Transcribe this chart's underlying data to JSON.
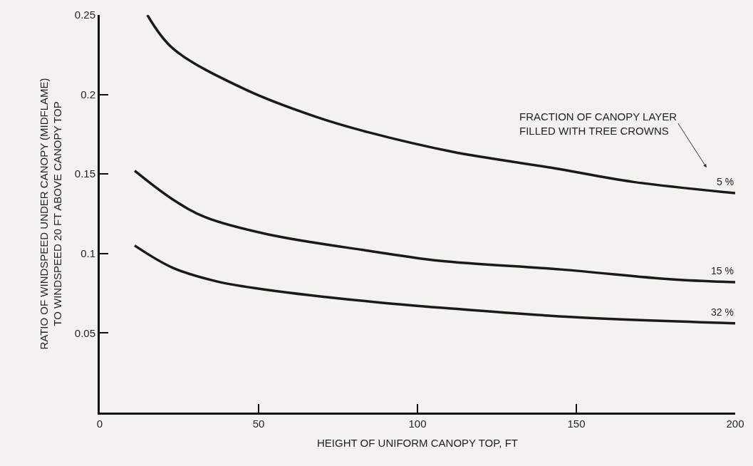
{
  "chart_data": {
    "type": "line",
    "xlabel": "HEIGHT OF UNIFORM CANOPY TOP, FT",
    "ylabel": "RATIO OF WINDSPEED UNDER CANOPY (MIDFLAME)\nTO WINDSPEED 20 FT ABOVE CANOPY TOP",
    "xlim": [
      0,
      200
    ],
    "xticks": [
      0,
      50,
      100,
      150,
      200
    ],
    "ylim": [
      0,
      0.25
    ],
    "yticks": [
      0.05,
      0.1,
      0.15,
      0.2,
      0.25
    ],
    "grid": false,
    "legend": false,
    "marker": "none",
    "line_style": "solid",
    "annotations": [
      "FRACTION OF CANOPY LAYER\nFILLED WITH TREE CROWNS"
    ],
    "series": [
      {
        "name": "5 %",
        "color": "#1a1a1a",
        "x": [
          15,
          23,
          46,
          68,
          85,
          111,
          142,
          168,
          200
        ],
        "values": [
          0.25,
          0.229,
          0.203,
          0.186,
          0.176,
          0.164,
          0.154,
          0.145,
          0.138
        ]
      },
      {
        "name": "15 %",
        "color": "#1a1a1a",
        "x": [
          11,
          23,
          33,
          53,
          85,
          107,
          145,
          180,
          200
        ],
        "values": [
          0.152,
          0.134,
          0.123,
          0.112,
          0.1016,
          0.0954,
          0.09,
          0.0838,
          0.082
        ]
      },
      {
        "name": "32 %",
        "color": "#1a1a1a",
        "x": [
          11,
          23,
          37,
          53,
          89,
          107,
          149,
          200
        ],
        "values": [
          0.105,
          0.091,
          0.0824,
          0.0771,
          0.069,
          0.066,
          0.06,
          0.0561
        ]
      }
    ]
  }
}
